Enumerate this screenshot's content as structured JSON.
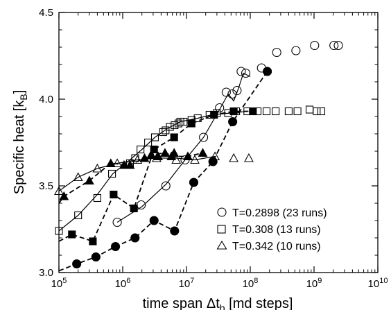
{
  "chart_data": {
    "type": "scatter",
    "title": "",
    "xlabel": "time span Δt",
    "xlabel_sub": "b",
    "xlabel_tail": " [md steps]",
    "ylabel": "Specific heat [k",
    "ylabel_sub": "B",
    "ylabel_tail": "]",
    "xscale": "log",
    "xlim": [
      100000,
      10000000000
    ],
    "ylim": [
      3.0,
      4.5
    ],
    "grid": false,
    "legend_position": "lower right",
    "x_ticks": [
      {
        "value": 100000,
        "base": "10",
        "exp": "5"
      },
      {
        "value": 1000000,
        "base": "10",
        "exp": "6"
      },
      {
        "value": 10000000,
        "base": "10",
        "exp": "7"
      },
      {
        "value": 100000000,
        "base": "10",
        "exp": "8"
      },
      {
        "value": 1000000000,
        "base": "10",
        "exp": "9"
      },
      {
        "value": 10000000000,
        "base": "10",
        "exp": "10"
      }
    ],
    "y_ticks": [
      {
        "value": 3.0,
        "label": "3.0"
      },
      {
        "value": 3.5,
        "label": "3.5"
      },
      {
        "value": 4.0,
        "label": "4.0"
      },
      {
        "value": 4.5,
        "label": "4.5"
      }
    ],
    "series": [
      {
        "name": "T=0.2898 (23 runs)",
        "marker": "circle",
        "fill": "none",
        "points": [
          [
            820000,
            3.29
          ],
          [
            1950000,
            3.39
          ],
          [
            4750000,
            3.5
          ],
          [
            9500000,
            3.65
          ],
          [
            18500000,
            3.78
          ],
          [
            33000000,
            3.95
          ],
          [
            42000000,
            4.04
          ],
          [
            52000000,
            4.03
          ],
          [
            62000000,
            4.05
          ],
          [
            72000000,
            4.16
          ],
          [
            85000000,
            4.15
          ],
          [
            150000000,
            4.18
          ],
          [
            260000000,
            4.27
          ],
          [
            520000000,
            4.28
          ],
          [
            1020000000,
            4.31
          ],
          [
            2050000000,
            4.31
          ],
          [
            2400000000,
            4.31
          ]
        ],
        "fit": [
          [
            820000,
            3.29
          ],
          [
            2000000,
            3.38
          ],
          [
            4800000,
            3.51
          ],
          [
            9500000,
            3.65
          ],
          [
            18500000,
            3.78
          ],
          [
            33000000,
            3.94
          ],
          [
            45000000,
            4.03
          ],
          [
            55000000,
            3.99
          ],
          [
            65000000,
            4.06
          ],
          [
            78000000,
            4.15
          ],
          [
            100000000,
            4.13
          ]
        ]
      },
      {
        "name": "",
        "marker": "circle",
        "fill": "solid",
        "dashed": true,
        "points": [
          [
            190000,
            3.05
          ],
          [
            380000,
            3.09
          ],
          [
            770000,
            3.15
          ],
          [
            1560000,
            3.2
          ],
          [
            3100000,
            3.3
          ],
          [
            6500000,
            3.24
          ],
          [
            13000000,
            3.52
          ],
          [
            26000000,
            3.64
          ],
          [
            53000000,
            3.87
          ],
          [
            185000000,
            4.16
          ]
        ],
        "fit": [
          [
            100000,
            3.01
          ],
          [
            190000,
            3.05
          ],
          [
            380000,
            3.09
          ],
          [
            770000,
            3.15
          ],
          [
            1560000,
            3.2
          ],
          [
            3100000,
            3.3
          ],
          [
            6500000,
            3.24
          ],
          [
            13000000,
            3.52
          ],
          [
            26000000,
            3.64
          ],
          [
            53000000,
            3.87
          ],
          [
            185000000,
            4.16
          ]
        ]
      },
      {
        "name": "T=0.308 (13 runs)",
        "marker": "square",
        "fill": "none",
        "points": [
          [
            100000,
            3.24
          ],
          [
            200000,
            3.33
          ],
          [
            400000,
            3.43
          ],
          [
            680000,
            3.57
          ],
          [
            1300000,
            3.63
          ],
          [
            1570000,
            3.66
          ],
          [
            1900000,
            3.71
          ],
          [
            2500000,
            3.75
          ],
          [
            3200000,
            3.78
          ],
          [
            4300000,
            3.81
          ],
          [
            4700000,
            3.82
          ],
          [
            5500000,
            3.84
          ],
          [
            6500000,
            3.85
          ],
          [
            7500000,
            3.86
          ],
          [
            8000000,
            3.87
          ],
          [
            9000000,
            3.87
          ],
          [
            12000000,
            3.88
          ],
          [
            15000000,
            3.89
          ],
          [
            23000000,
            3.91
          ],
          [
            30000000,
            3.92
          ],
          [
            45000000,
            3.92
          ],
          [
            60000000,
            3.93
          ],
          [
            90000000,
            3.93
          ],
          [
            130000000,
            3.93
          ],
          [
            180000000,
            3.93
          ],
          [
            250000000,
            3.93
          ],
          [
            400000000,
            3.93
          ],
          [
            550000000,
            3.93
          ],
          [
            850000000,
            3.94
          ],
          [
            1100000000,
            3.93
          ],
          [
            1300000000,
            3.93
          ]
        ],
        "fit": [
          [
            100000,
            3.24
          ],
          [
            200000,
            3.33
          ],
          [
            400000,
            3.45
          ],
          [
            700000,
            3.57
          ],
          [
            1300000,
            3.65
          ],
          [
            2000000,
            3.71
          ],
          [
            3200000,
            3.78
          ],
          [
            5000000,
            3.83
          ],
          [
            8000000,
            3.87
          ],
          [
            15000000,
            3.89
          ],
          [
            25000000,
            3.91
          ],
          [
            50000000,
            3.92
          ],
          [
            90000000,
            3.93
          ]
        ]
      },
      {
        "name": "",
        "marker": "square",
        "fill": "solid",
        "dashed": true,
        "points": [
          [
            160000,
            3.22
          ],
          [
            340000,
            3.18
          ],
          [
            720000,
            3.45
          ],
          [
            1500000,
            3.37
          ],
          [
            3100000,
            3.71
          ],
          [
            6400000,
            3.78
          ],
          [
            12000000,
            3.86
          ],
          [
            27000000,
            3.91
          ],
          [
            55000000,
            3.93
          ],
          [
            110000000,
            3.93
          ]
        ],
        "fit": [
          [
            100000,
            3.18
          ],
          [
            160000,
            3.22
          ],
          [
            340000,
            3.18
          ],
          [
            720000,
            3.45
          ],
          [
            1500000,
            3.37
          ],
          [
            3100000,
            3.71
          ],
          [
            6400000,
            3.78
          ],
          [
            12000000,
            3.86
          ],
          [
            27000000,
            3.91
          ],
          [
            55000000,
            3.93
          ],
          [
            110000000,
            3.93
          ]
        ]
      },
      {
        "name": "T=0.342 (10 runs)",
        "marker": "triangle",
        "fill": "none",
        "points": [
          [
            100000,
            3.47
          ],
          [
            200000,
            3.55
          ],
          [
            400000,
            3.6
          ],
          [
            820000,
            3.63
          ],
          [
            1700000,
            3.65
          ],
          [
            3400000,
            3.66
          ],
          [
            6900000,
            3.65
          ],
          [
            13500000,
            3.65
          ],
          [
            28000000,
            3.67
          ],
          [
            55000000,
            3.66
          ],
          [
            95000000,
            3.66
          ]
        ],
        "fit": [
          [
            100000,
            3.47
          ],
          [
            200000,
            3.55
          ],
          [
            400000,
            3.6
          ],
          [
            820000,
            3.63
          ],
          [
            1700000,
            3.65
          ],
          [
            3400000,
            3.66
          ],
          [
            6900000,
            3.66
          ],
          [
            13500000,
            3.65
          ],
          [
            28000000,
            3.67
          ]
        ]
      },
      {
        "name": "",
        "marker": "triangle",
        "fill": "solid",
        "dashed": true,
        "points": [
          [
            120000,
            3.44
          ],
          [
            300000,
            3.53
          ],
          [
            650000,
            3.63
          ],
          [
            1050000,
            3.62
          ],
          [
            1300000,
            3.62
          ],
          [
            2200000,
            3.66
          ],
          [
            2800000,
            3.68
          ],
          [
            3600000,
            3.67
          ],
          [
            4600000,
            3.69
          ],
          [
            5800000,
            3.67
          ],
          [
            6400000,
            3.69
          ],
          [
            10500000,
            3.67
          ],
          [
            18000000,
            3.69
          ]
        ],
        "fit": [
          [
            100000,
            3.4
          ],
          [
            120000,
            3.44
          ],
          [
            300000,
            3.53
          ],
          [
            650000,
            3.63
          ],
          [
            1300000,
            3.62
          ],
          [
            2800000,
            3.68
          ],
          [
            4600000,
            3.69
          ],
          [
            6400000,
            3.67
          ],
          [
            10500000,
            3.67
          ],
          [
            18000000,
            3.69
          ]
        ]
      }
    ]
  }
}
